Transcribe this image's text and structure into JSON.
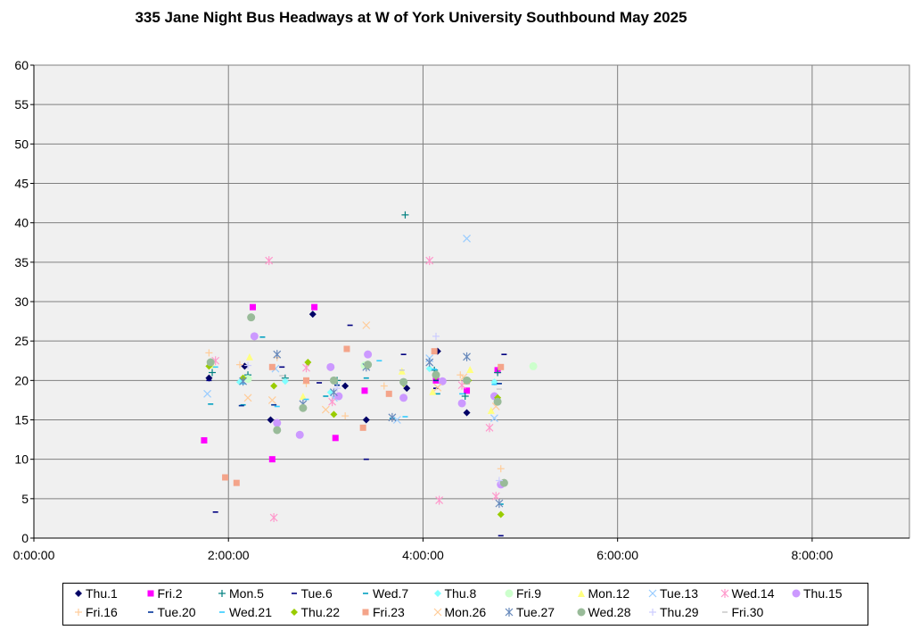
{
  "chart_data": {
    "type": "scatter",
    "title": "335 Jane Night Bus Headways at W of York University Southbound May 2025",
    "xlabel": "",
    "ylabel": "",
    "x_unit": "time of day (h:mm:ss)",
    "xlim": [
      "0:00:00",
      "9:00:00"
    ],
    "ylim": [
      0,
      60
    ],
    "x_ticks": [
      "0:00:00",
      "2:00:00",
      "4:00:00",
      "6:00:00",
      "8:00:00"
    ],
    "y_ticks": [
      "0",
      "5",
      "10",
      "15",
      "20",
      "25",
      "30",
      "35",
      "40",
      "45",
      "50",
      "55",
      "60"
    ],
    "grid": "major gridlines on both axes",
    "plot_background": "#f0f0f0",
    "legend_position": "bottom",
    "series": [
      {
        "name": "Thu.1",
        "marker": "diamond",
        "color": "#000066",
        "points": [
          [
            "1:48:00",
            20.3
          ],
          [
            "2:10:00",
            21.8
          ],
          [
            "2:26:00",
            15.0
          ],
          [
            "2:52:00",
            28.4
          ],
          [
            "3:12:00",
            19.3
          ],
          [
            "3:25:00",
            15.0
          ],
          [
            "3:50:00",
            19.0
          ],
          [
            "4:09:00",
            23.7
          ],
          [
            "4:27:00",
            15.9
          ]
        ]
      },
      {
        "name": "Fri.2",
        "marker": "square",
        "color": "#ff00ff",
        "points": [
          [
            "1:45:00",
            12.4
          ],
          [
            "2:15:00",
            29.3
          ],
          [
            "2:27:00",
            10.0
          ],
          [
            "2:53:00",
            29.3
          ],
          [
            "3:06:00",
            12.7
          ],
          [
            "3:24:00",
            18.7
          ],
          [
            "4:08:00",
            20.0
          ],
          [
            "4:27:00",
            18.7
          ],
          [
            "4:46:00",
            21.3
          ]
        ]
      },
      {
        "name": "Mon.5",
        "marker": "plus",
        "color": "#008080",
        "points": [
          [
            "1:50:00",
            21.0
          ],
          [
            "2:12:00",
            20.7
          ],
          [
            "2:35:00",
            20.3
          ],
          [
            "3:07:00",
            20.0
          ],
          [
            "3:49:00",
            41.0
          ],
          [
            "4:07:00",
            21.3
          ],
          [
            "4:26:00",
            18.0
          ],
          [
            "4:46:00",
            21.0
          ]
        ]
      },
      {
        "name": "Tue.6",
        "marker": "dash",
        "color": "#000080",
        "points": [
          [
            "1:48:00",
            20.0
          ],
          [
            "1:52:00",
            3.3
          ],
          [
            "2:33:00",
            21.7
          ],
          [
            "2:56:00",
            19.7
          ],
          [
            "3:15:00",
            27.0
          ],
          [
            "3:25:00",
            10.0
          ],
          [
            "3:48:00",
            23.3
          ],
          [
            "4:08:00",
            19.0
          ],
          [
            "4:50:00",
            23.3
          ],
          [
            "4:48:00",
            0.3
          ]
        ]
      },
      {
        "name": "Wed.7",
        "marker": "dash",
        "color": "#00a0c0",
        "points": [
          [
            "1:49:00",
            17.0
          ],
          [
            "2:09:00",
            16.9
          ],
          [
            "2:21:00",
            25.5
          ],
          [
            "3:00:00",
            18.0
          ],
          [
            "3:25:00",
            20.3
          ],
          [
            "3:41:00",
            15.2
          ],
          [
            "4:09:00",
            18.3
          ],
          [
            "4:27:00",
            20.0
          ],
          [
            "4:48:00",
            4.3
          ]
        ]
      },
      {
        "name": "Thu.8",
        "marker": "diamond",
        "color": "#80ffff",
        "points": [
          [
            "2:07:00",
            19.8
          ],
          [
            "2:35:00",
            19.9
          ],
          [
            "3:03:00",
            18.5
          ],
          [
            "4:04:00",
            21.5
          ],
          [
            "4:44:00",
            19.8
          ]
        ]
      },
      {
        "name": "Fri.9",
        "marker": "circle",
        "color": "#ccffcc",
        "points": [
          [
            "2:12:00",
            20.2
          ],
          [
            "3:24:00",
            21.9
          ],
          [
            "5:08:00",
            21.8
          ]
        ]
      },
      {
        "name": "Mon.12",
        "marker": "triangle",
        "color": "#ffff80",
        "points": [
          [
            "1:50:00",
            22.0
          ],
          [
            "2:13:00",
            23.0
          ],
          [
            "2:46:00",
            18.0
          ],
          [
            "3:47:00",
            21.2
          ],
          [
            "4:06:00",
            18.6
          ],
          [
            "4:29:00",
            21.4
          ],
          [
            "4:42:00",
            16.2
          ]
        ]
      },
      {
        "name": "Tue.13",
        "marker": "x",
        "color": "#99ccff",
        "points": [
          [
            "1:47:00",
            18.3
          ],
          [
            "2:29:00",
            21.5
          ],
          [
            "3:05:00",
            17.8
          ],
          [
            "3:44:00",
            15.0
          ],
          [
            "4:04:00",
            22.8
          ],
          [
            "4:27:00",
            38.0
          ],
          [
            "4:44:00",
            15.2
          ]
        ]
      },
      {
        "name": "Wed.14",
        "marker": "asterisk",
        "color": "#ff99cc",
        "points": [
          [
            "1:52:00",
            22.5
          ],
          [
            "2:25:00",
            35.2
          ],
          [
            "2:28:00",
            2.6
          ],
          [
            "2:48:00",
            21.6
          ],
          [
            "3:04:00",
            17.3
          ],
          [
            "4:04:00",
            35.2
          ],
          [
            "4:10:00",
            4.8
          ],
          [
            "4:24:00",
            19.4
          ],
          [
            "4:41:00",
            14.0
          ],
          [
            "4:45:00",
            5.3
          ]
        ]
      },
      {
        "name": "Thu.15",
        "marker": "circle",
        "color": "#cc99ff",
        "points": [
          [
            "2:16:00",
            25.6
          ],
          [
            "2:30:00",
            14.6
          ],
          [
            "2:44:00",
            13.1
          ],
          [
            "3:03:00",
            21.7
          ],
          [
            "3:08:00",
            18.0
          ],
          [
            "3:26:00",
            23.3
          ],
          [
            "3:48:00",
            17.8
          ],
          [
            "4:12:00",
            19.9
          ],
          [
            "4:24:00",
            17.1
          ],
          [
            "4:44:00",
            18.0
          ],
          [
            "4:48:00",
            6.8
          ]
        ]
      },
      {
        "name": "Fri.16",
        "marker": "plus",
        "color": "#ffcc99",
        "points": [
          [
            "1:48:00",
            23.5
          ],
          [
            "2:07:00",
            22.0
          ],
          [
            "2:30:00",
            22.9
          ],
          [
            "2:48:00",
            19.6
          ],
          [
            "3:12:00",
            15.5
          ],
          [
            "3:36:00",
            19.3
          ],
          [
            "4:23:00",
            20.7
          ],
          [
            "4:48:00",
            8.8
          ]
        ]
      },
      {
        "name": "Tue.20",
        "marker": "dash",
        "color": "#003399",
        "points": [
          [
            "2:08:00",
            16.8
          ],
          [
            "2:28:00",
            16.9
          ],
          [
            "3:07:00",
            19.4
          ],
          [
            "4:08:00",
            20.0
          ],
          [
            "4:47:00",
            19.6
          ]
        ]
      },
      {
        "name": "Wed.21",
        "marker": "dash",
        "color": "#33ccff",
        "points": [
          [
            "1:52:00",
            21.7
          ],
          [
            "2:09:00",
            19.6
          ],
          [
            "2:30:00",
            16.7
          ],
          [
            "2:48:00",
            17.6
          ],
          [
            "3:33:00",
            22.5
          ],
          [
            "3:49:00",
            15.4
          ],
          [
            "4:07:00",
            21.4
          ],
          [
            "4:24:00",
            18.3
          ],
          [
            "4:44:00",
            19.5
          ]
        ]
      },
      {
        "name": "Thu.22",
        "marker": "diamond",
        "color": "#99cc00",
        "points": [
          [
            "1:48:00",
            21.8
          ],
          [
            "2:09:00",
            20.3
          ],
          [
            "2:28:00",
            19.3
          ],
          [
            "2:49:00",
            22.3
          ],
          [
            "3:05:00",
            15.7
          ],
          [
            "3:26:00",
            21.8
          ],
          [
            "3:48:00",
            19.6
          ],
          [
            "4:08:00",
            20.5
          ],
          [
            "4:28:00",
            20.0
          ],
          [
            "4:46:00",
            17.8
          ],
          [
            "4:48:00",
            3.0
          ]
        ]
      },
      {
        "name": "Fri.23",
        "marker": "square",
        "color": "#f4a48a",
        "points": [
          [
            "1:58:00",
            7.7
          ],
          [
            "2:05:00",
            7.0
          ],
          [
            "2:27:00",
            21.7
          ],
          [
            "2:48:00",
            20.0
          ],
          [
            "3:13:00",
            24.0
          ],
          [
            "3:23:00",
            14.0
          ],
          [
            "3:39:00",
            18.3
          ],
          [
            "4:07:00",
            23.7
          ],
          [
            "4:27:00",
            19.9
          ],
          [
            "4:48:00",
            21.7
          ]
        ]
      },
      {
        "name": "Mon.26",
        "marker": "x",
        "color": "#ffcc99",
        "points": [
          [
            "2:12:00",
            17.8
          ],
          [
            "2:27:00",
            17.5
          ],
          [
            "3:00:00",
            16.3
          ],
          [
            "3:25:00",
            27.0
          ],
          [
            "4:09:00",
            19.1
          ],
          [
            "4:25:00",
            20.4
          ],
          [
            "4:45:00",
            16.7
          ]
        ]
      },
      {
        "name": "Tue.27",
        "marker": "asterisk",
        "color": "#6688bb",
        "points": [
          [
            "2:09:00",
            19.9
          ],
          [
            "2:30:00",
            23.3
          ],
          [
            "2:46:00",
            17.0
          ],
          [
            "3:05:00",
            18.5
          ],
          [
            "3:25:00",
            21.7
          ],
          [
            "3:41:00",
            15.3
          ],
          [
            "4:04:00",
            22.3
          ],
          [
            "4:27:00",
            23.0
          ],
          [
            "4:47:00",
            4.4
          ]
        ]
      },
      {
        "name": "Wed.28",
        "marker": "circle",
        "color": "#99bb99",
        "points": [
          [
            "1:49:00",
            22.3
          ],
          [
            "2:14:00",
            28.0
          ],
          [
            "2:30:00",
            13.7
          ],
          [
            "2:46:00",
            16.5
          ],
          [
            "3:05:00",
            20.0
          ],
          [
            "3:26:00",
            22.0
          ],
          [
            "3:48:00",
            19.8
          ],
          [
            "4:08:00",
            20.7
          ],
          [
            "4:27:00",
            20.0
          ],
          [
            "4:46:00",
            17.3
          ],
          [
            "4:50:00",
            7.0
          ]
        ]
      },
      {
        "name": "Thu.29",
        "marker": "plus",
        "color": "#ccccff",
        "points": [
          [
            "2:12:00",
            21.9
          ],
          [
            "3:07:00",
            19.0
          ],
          [
            "4:08:00",
            25.6
          ],
          [
            "4:47:00",
            7.3
          ]
        ]
      },
      {
        "name": "Fri.30",
        "marker": "dash",
        "color": "#cccccc",
        "points": [
          [
            "2:33:00",
            20.6
          ],
          [
            "3:47:00",
            21.3
          ],
          [
            "4:47:00",
            18.9
          ]
        ]
      }
    ]
  }
}
